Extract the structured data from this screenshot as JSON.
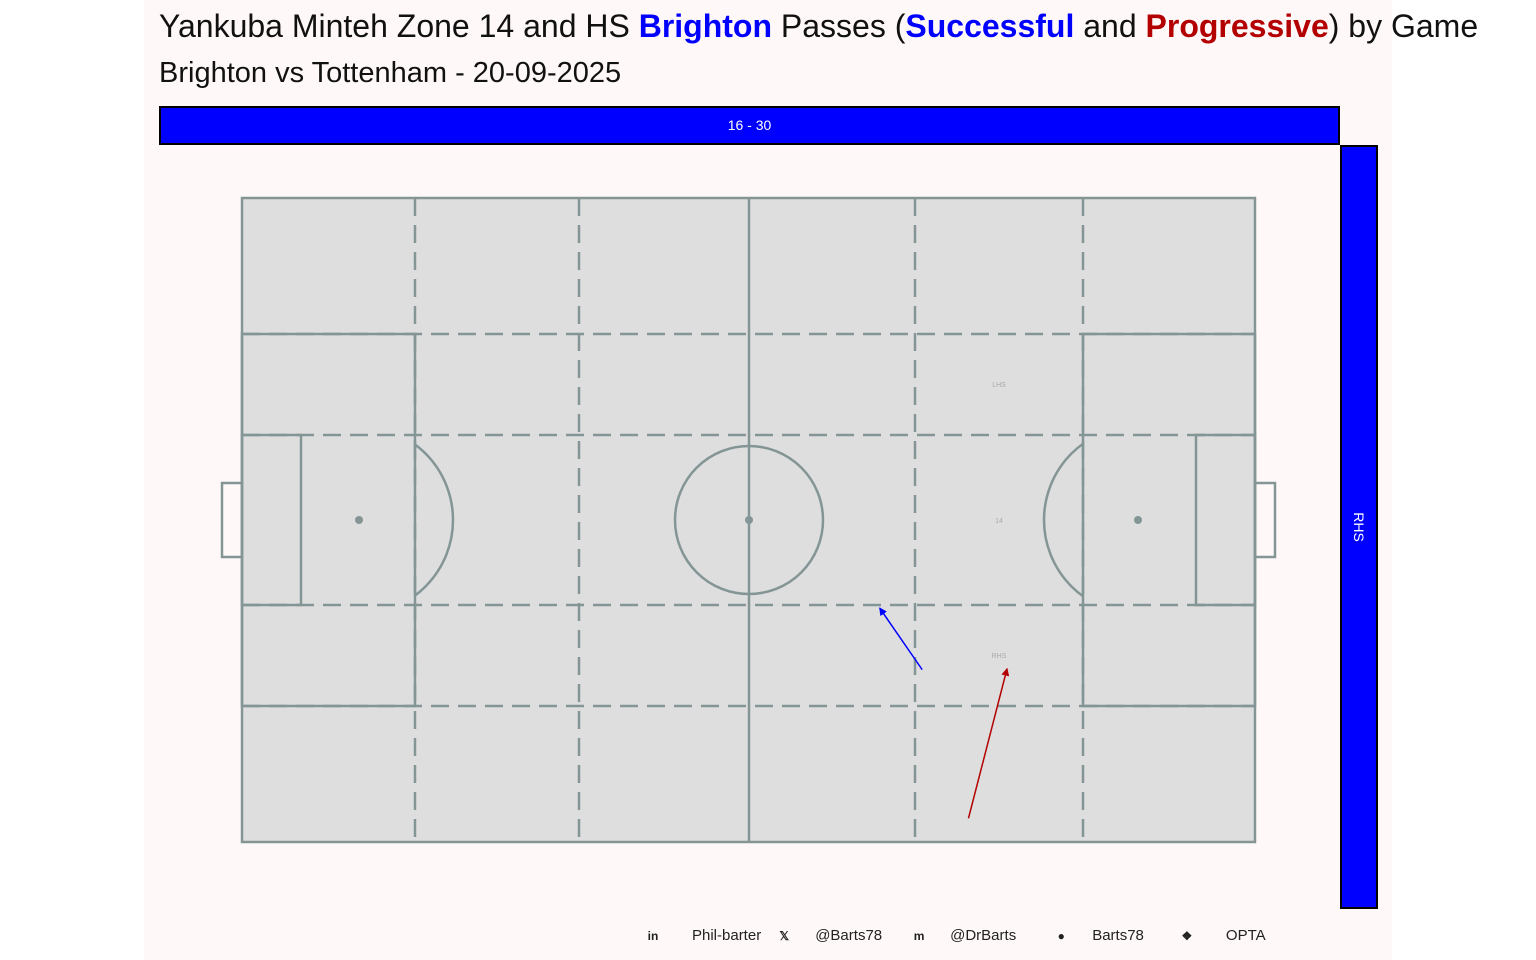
{
  "title": {
    "prefix": "Yankuba Minteh Zone 14 and HS ",
    "team": "Brighton",
    "mid": " Passes (",
    "successful": "Successful",
    "and": " and ",
    "progressive": "Progressive",
    "suffix": ") by Game"
  },
  "subtitle": "Brighton vs Tottenham - 20-09-2025",
  "colors": {
    "successful": "#0000ff",
    "progressive": "#b30000",
    "pitch": "#dedede",
    "lines": "#849595"
  },
  "facets": {
    "top": "16 - 30",
    "right": "RHS"
  },
  "zone_labels": {
    "lhs": "LHS",
    "zone14": "14",
    "rhs": "RHS"
  },
  "chart_data": {
    "type": "scatter",
    "pitch": {
      "length": 105,
      "width": 68
    },
    "passes": [
      {
        "kind": "successful",
        "x": 70.5,
        "y": 49.8,
        "end_x": 66.1,
        "end_y": 43.3
      },
      {
        "kind": "progressive",
        "x": 75.3,
        "y": 65.5,
        "end_x": 79.3,
        "end_y": 49.7
      }
    ]
  },
  "caption": [
    {
      "icon": "linkedin-icon",
      "text": "Phil-barter"
    },
    {
      "icon": "x-icon",
      "text": "@Barts78"
    },
    {
      "icon": "mastodon-icon",
      "text": "@DrBarts"
    },
    {
      "icon": "github-icon",
      "text": "Barts78"
    },
    {
      "icon": "dropbox-icon",
      "text": "OPTA"
    }
  ]
}
